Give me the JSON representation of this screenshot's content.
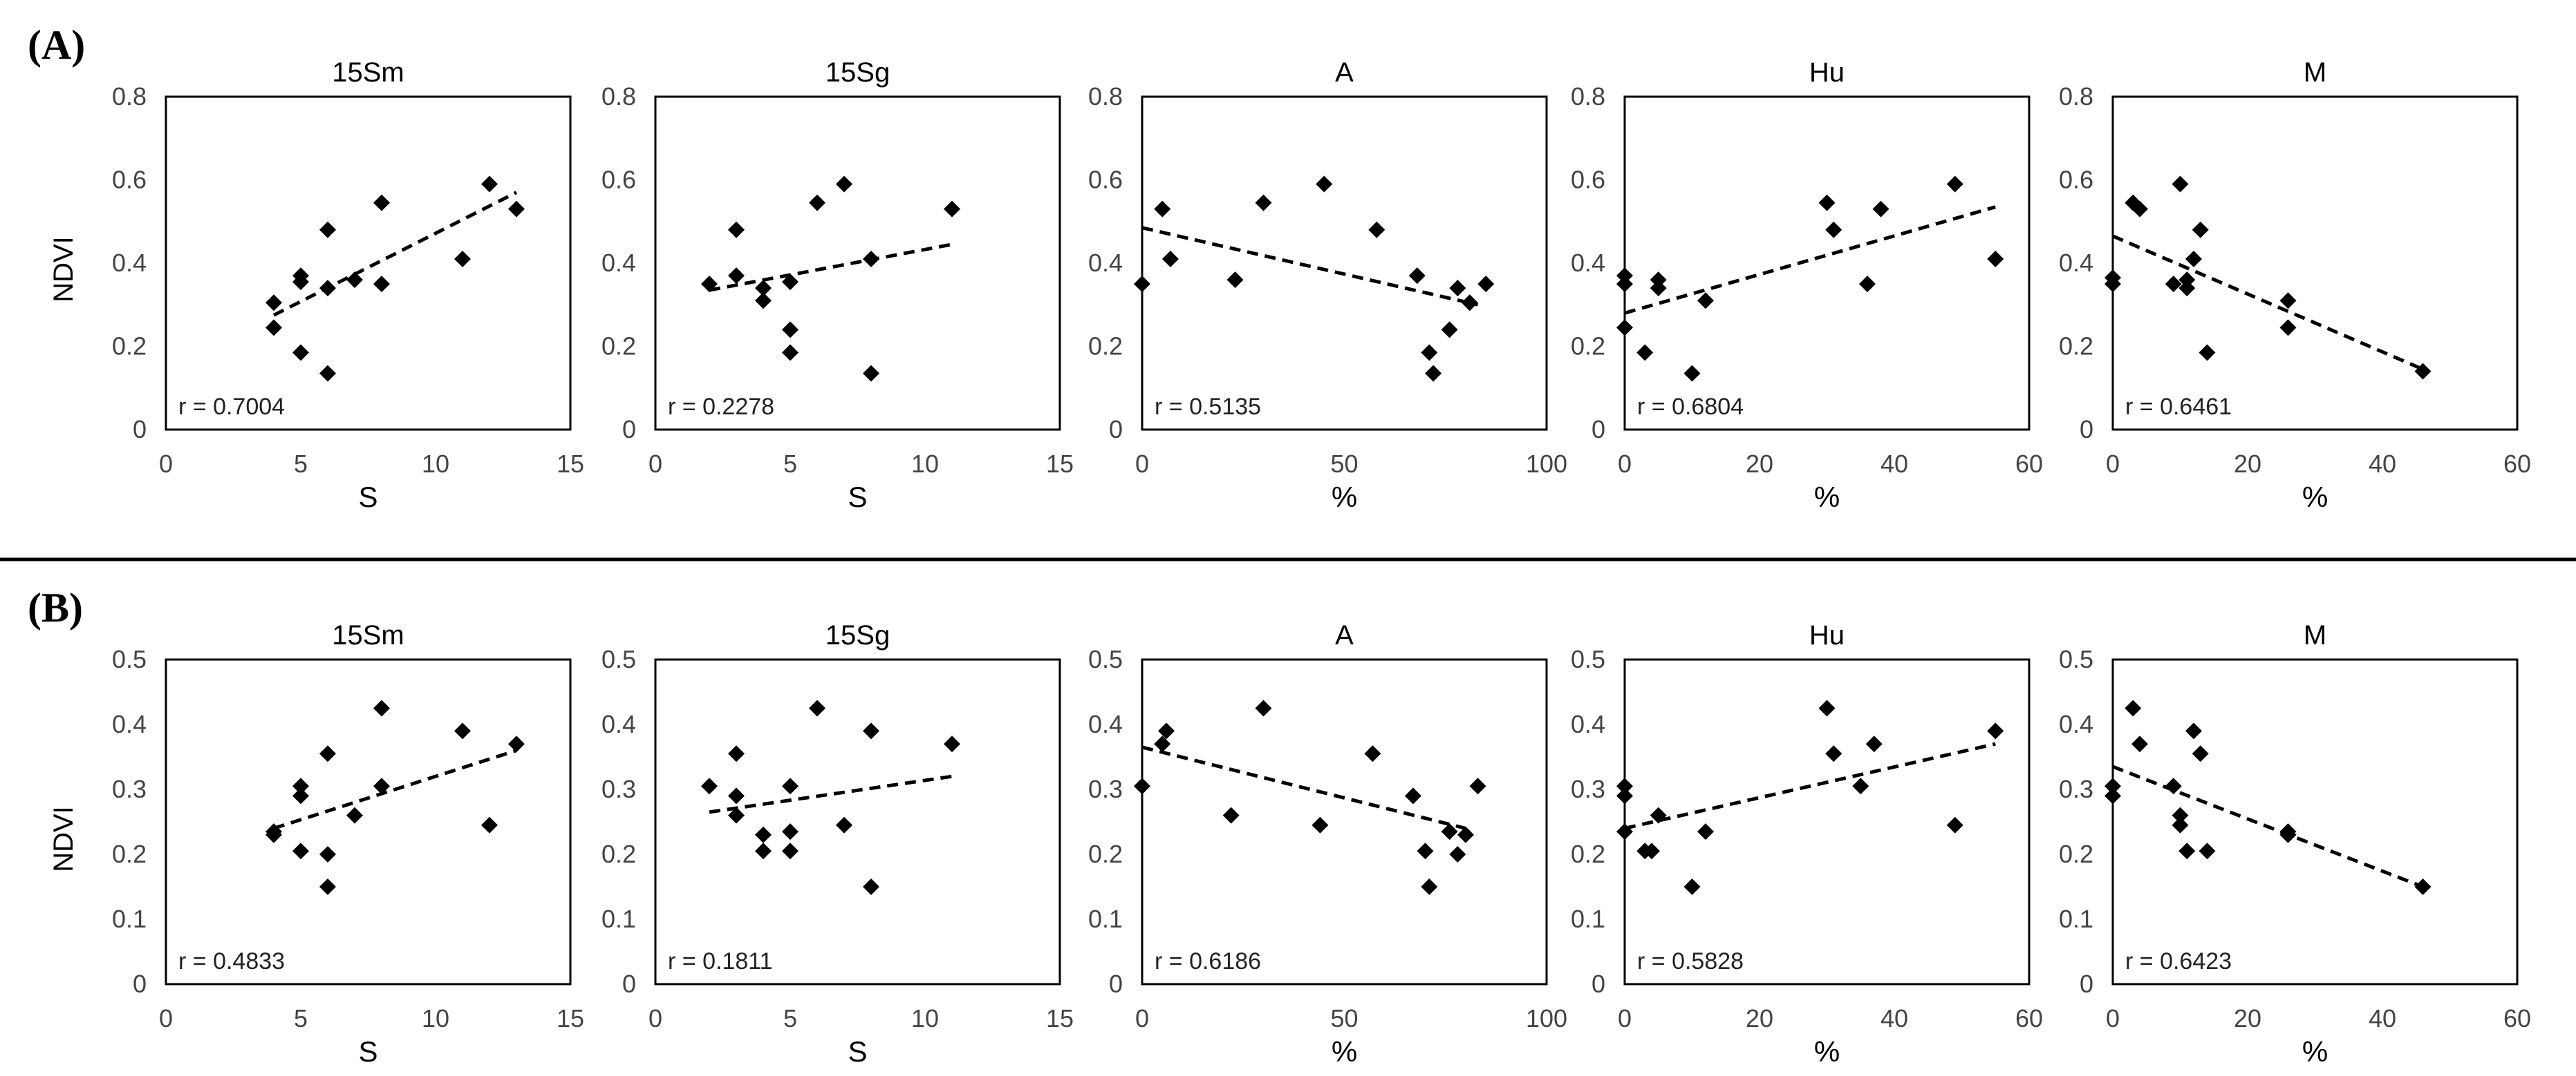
{
  "ylabel": "NDVI",
  "chart_data": [
    {
      "panel": "(A)",
      "title": "15Sm",
      "type": "scatter",
      "xlabel": "S",
      "ylabel": "NDVI",
      "xlim": [
        0,
        15
      ],
      "ylim": [
        0,
        0.8
      ],
      "xticks": [
        0,
        5,
        10,
        15
      ],
      "yticks": [
        0,
        0.2,
        0.4,
        0.6,
        0.8
      ],
      "ytick_labels": [
        "0",
        "0.2",
        "0.4",
        "0.6",
        "0.8"
      ],
      "r_label": "r = 0.7004",
      "trendline": [
        [
          4,
          0.275
        ],
        [
          13,
          0.57
        ]
      ],
      "points": [
        [
          4,
          0.305
        ],
        [
          4,
          0.245
        ],
        [
          5,
          0.37
        ],
        [
          5,
          0.355
        ],
        [
          5,
          0.185
        ],
        [
          6,
          0.48
        ],
        [
          6,
          0.34
        ],
        [
          6,
          0.135
        ],
        [
          7,
          0.36
        ],
        [
          8,
          0.545
        ],
        [
          8,
          0.35
        ],
        [
          11,
          0.41
        ],
        [
          12,
          0.59
        ],
        [
          13,
          0.53
        ]
      ]
    },
    {
      "panel": "(A)",
      "title": "15Sg",
      "type": "scatter",
      "xlabel": "S",
      "ylabel": "",
      "xlim": [
        0,
        15
      ],
      "ylim": [
        0,
        0.8
      ],
      "xticks": [
        0,
        5,
        10,
        15
      ],
      "yticks": [
        0,
        0.2,
        0.4,
        0.6,
        0.8
      ],
      "ytick_labels": [
        "0",
        "0.2",
        "0.4",
        "0.6",
        "0.8"
      ],
      "r_label": "r = 0.2278",
      "trendline": [
        [
          2,
          0.335
        ],
        [
          11,
          0.445
        ]
      ],
      "points": [
        [
          2,
          0.35
        ],
        [
          3,
          0.48
        ],
        [
          3,
          0.37
        ],
        [
          4,
          0.34
        ],
        [
          4,
          0.31
        ],
        [
          5,
          0.355
        ],
        [
          5,
          0.24
        ],
        [
          5,
          0.185
        ],
        [
          6,
          0.545
        ],
        [
          7,
          0.59
        ],
        [
          8,
          0.41
        ],
        [
          8,
          0.135
        ],
        [
          11,
          0.53
        ]
      ]
    },
    {
      "panel": "(A)",
      "title": "A",
      "type": "scatter",
      "xlabel": "%",
      "ylabel": "",
      "xlim": [
        0,
        100
      ],
      "ylim": [
        0,
        0.8
      ],
      "xticks": [
        0,
        50,
        100
      ],
      "yticks": [
        0,
        0.2,
        0.4,
        0.6,
        0.8
      ],
      "ytick_labels": [
        "0",
        "0.2",
        "0.4",
        "0.6",
        "0.8"
      ],
      "r_label": "r = 0.5135",
      "trendline": [
        [
          0,
          0.485
        ],
        [
          83,
          0.3
        ]
      ],
      "points": [
        [
          0,
          0.35
        ],
        [
          5,
          0.53
        ],
        [
          7,
          0.41
        ],
        [
          23,
          0.36
        ],
        [
          30,
          0.545
        ],
        [
          45,
          0.59
        ],
        [
          58,
          0.48
        ],
        [
          68,
          0.37
        ],
        [
          71,
          0.185
        ],
        [
          72,
          0.135
        ],
        [
          76,
          0.24
        ],
        [
          78,
          0.34
        ],
        [
          81,
          0.305
        ],
        [
          85,
          0.35
        ]
      ]
    },
    {
      "panel": "(A)",
      "title": "Hu",
      "type": "scatter",
      "xlabel": "%",
      "ylabel": "",
      "xlim": [
        0,
        60
      ],
      "ylim": [
        0,
        0.8
      ],
      "xticks": [
        0,
        20,
        40,
        60
      ],
      "yticks": [
        0,
        0.2,
        0.4,
        0.6,
        0.8
      ],
      "ytick_labels": [
        "0",
        "0.2",
        "0.4",
        "0.6",
        "0.8"
      ],
      "r_label": "r = 0.6804",
      "trendline": [
        [
          0,
          0.28
        ],
        [
          55,
          0.535
        ]
      ],
      "points": [
        [
          0,
          0.37
        ],
        [
          0,
          0.35
        ],
        [
          0,
          0.245
        ],
        [
          3,
          0.185
        ],
        [
          5,
          0.36
        ],
        [
          5,
          0.34
        ],
        [
          10,
          0.135
        ],
        [
          12,
          0.31
        ],
        [
          30,
          0.545
        ],
        [
          31,
          0.48
        ],
        [
          36,
          0.35
        ],
        [
          38,
          0.53
        ],
        [
          49,
          0.59
        ],
        [
          55,
          0.41
        ]
      ]
    },
    {
      "panel": "(A)",
      "title": "M",
      "type": "scatter",
      "xlabel": "%",
      "ylabel": "",
      "xlim": [
        0,
        60
      ],
      "ylim": [
        0,
        0.8
      ],
      "xticks": [
        0,
        20,
        40,
        60
      ],
      "yticks": [
        0,
        0.2,
        0.4,
        0.6,
        0.8
      ],
      "ytick_labels": [
        "0",
        "0.2",
        "0.4",
        "0.6",
        "0.8"
      ],
      "r_label": "r = 0.6461",
      "trendline": [
        [
          0,
          0.465
        ],
        [
          46,
          0.145
        ]
      ],
      "points": [
        [
          0,
          0.365
        ],
        [
          0,
          0.35
        ],
        [
          3,
          0.545
        ],
        [
          4,
          0.53
        ],
        [
          9,
          0.35
        ],
        [
          10,
          0.59
        ],
        [
          11,
          0.36
        ],
        [
          11,
          0.34
        ],
        [
          12,
          0.41
        ],
        [
          13,
          0.48
        ],
        [
          14,
          0.185
        ],
        [
          26,
          0.31
        ],
        [
          26,
          0.245
        ],
        [
          46,
          0.14
        ]
      ]
    },
    {
      "panel": "(B)",
      "title": "15Sm",
      "type": "scatter",
      "xlabel": "S",
      "ylabel": "NDVI",
      "xlim": [
        0,
        15
      ],
      "ylim": [
        0,
        0.5
      ],
      "xticks": [
        0,
        5,
        10,
        15
      ],
      "yticks": [
        0,
        0.1,
        0.2,
        0.3,
        0.4,
        0.5
      ],
      "ytick_labels": [
        "0",
        "0.1",
        "0.2",
        "0.3",
        "0.4",
        "0.5"
      ],
      "r_label": "r = 0.4833",
      "trendline": [
        [
          4,
          0.24
        ],
        [
          13,
          0.36
        ]
      ],
      "points": [
        [
          4,
          0.235
        ],
        [
          4,
          0.23
        ],
        [
          5,
          0.305
        ],
        [
          5,
          0.29
        ],
        [
          5,
          0.205
        ],
        [
          6,
          0.355
        ],
        [
          6,
          0.2
        ],
        [
          6,
          0.15
        ],
        [
          7,
          0.26
        ],
        [
          8,
          0.425
        ],
        [
          8,
          0.305
        ],
        [
          11,
          0.39
        ],
        [
          12,
          0.245
        ],
        [
          13,
          0.37
        ]
      ]
    },
    {
      "panel": "(B)",
      "title": "15Sg",
      "type": "scatter",
      "xlabel": "S",
      "ylabel": "",
      "xlim": [
        0,
        15
      ],
      "ylim": [
        0,
        0.5
      ],
      "xticks": [
        0,
        5,
        10,
        15
      ],
      "yticks": [
        0,
        0.1,
        0.2,
        0.3,
        0.4,
        0.5
      ],
      "ytick_labels": [
        "0",
        "0.1",
        "0.2",
        "0.3",
        "0.4",
        "0.5"
      ],
      "r_label": "r = 0.1811",
      "trendline": [
        [
          2,
          0.265
        ],
        [
          11,
          0.32
        ]
      ],
      "points": [
        [
          2,
          0.305
        ],
        [
          3,
          0.355
        ],
        [
          3,
          0.29
        ],
        [
          3,
          0.26
        ],
        [
          4,
          0.23
        ],
        [
          4,
          0.205
        ],
        [
          5,
          0.305
        ],
        [
          5,
          0.235
        ],
        [
          5,
          0.205
        ],
        [
          6,
          0.425
        ],
        [
          7,
          0.245
        ],
        [
          8,
          0.39
        ],
        [
          8,
          0.15
        ],
        [
          11,
          0.37
        ]
      ]
    },
    {
      "panel": "(B)",
      "title": "A",
      "type": "scatter",
      "xlabel": "%",
      "ylabel": "",
      "xlim": [
        0,
        100
      ],
      "ylim": [
        0,
        0.5
      ],
      "xticks": [
        0,
        50,
        100
      ],
      "yticks": [
        0,
        0.1,
        0.2,
        0.3,
        0.4,
        0.5
      ],
      "ytick_labels": [
        "0",
        "0.1",
        "0.2",
        "0.3",
        "0.4",
        "0.5"
      ],
      "r_label": "r = 0.6186",
      "trendline": [
        [
          0,
          0.365
        ],
        [
          80,
          0.24
        ]
      ],
      "points": [
        [
          0,
          0.305
        ],
        [
          5,
          0.37
        ],
        [
          6,
          0.39
        ],
        [
          22,
          0.26
        ],
        [
          30,
          0.425
        ],
        [
          44,
          0.245
        ],
        [
          57,
          0.355
        ],
        [
          67,
          0.29
        ],
        [
          70,
          0.205
        ],
        [
          71,
          0.15
        ],
        [
          76,
          0.235
        ],
        [
          78,
          0.2
        ],
        [
          80,
          0.23
        ],
        [
          83,
          0.305
        ]
      ]
    },
    {
      "panel": "(B)",
      "title": "Hu",
      "type": "scatter",
      "xlabel": "%",
      "ylabel": "",
      "xlim": [
        0,
        60
      ],
      "ylim": [
        0,
        0.5
      ],
      "xticks": [
        0,
        20,
        40,
        60
      ],
      "yticks": [
        0,
        0.1,
        0.2,
        0.3,
        0.4,
        0.5
      ],
      "ytick_labels": [
        "0",
        "0.1",
        "0.2",
        "0.3",
        "0.4",
        "0.5"
      ],
      "r_label": "r = 0.5828",
      "trendline": [
        [
          0,
          0.24
        ],
        [
          55,
          0.37
        ]
      ],
      "points": [
        [
          0,
          0.305
        ],
        [
          0,
          0.29
        ],
        [
          0,
          0.235
        ],
        [
          3,
          0.205
        ],
        [
          4,
          0.205
        ],
        [
          5,
          0.26
        ],
        [
          10,
          0.15
        ],
        [
          12,
          0.235
        ],
        [
          30,
          0.425
        ],
        [
          31,
          0.355
        ],
        [
          35,
          0.305
        ],
        [
          37,
          0.37
        ],
        [
          49,
          0.245
        ],
        [
          55,
          0.39
        ]
      ]
    },
    {
      "panel": "(B)",
      "title": "M",
      "type": "scatter",
      "xlabel": "%",
      "ylabel": "",
      "xlim": [
        0,
        60
      ],
      "ylim": [
        0,
        0.5
      ],
      "xticks": [
        0,
        20,
        40,
        60
      ],
      "yticks": [
        0,
        0.1,
        0.2,
        0.3,
        0.4,
        0.5
      ],
      "ytick_labels": [
        "0",
        "0.1",
        "0.2",
        "0.3",
        "0.4",
        "0.5"
      ],
      "r_label": "r = 0.6423",
      "trendline": [
        [
          0,
          0.335
        ],
        [
          46,
          0.15
        ]
      ],
      "points": [
        [
          0,
          0.305
        ],
        [
          0,
          0.29
        ],
        [
          3,
          0.425
        ],
        [
          4,
          0.37
        ],
        [
          9,
          0.305
        ],
        [
          10,
          0.26
        ],
        [
          10,
          0.245
        ],
        [
          11,
          0.205
        ],
        [
          12,
          0.39
        ],
        [
          13,
          0.355
        ],
        [
          14,
          0.205
        ],
        [
          26,
          0.235
        ],
        [
          26,
          0.23
        ],
        [
          46,
          0.15
        ]
      ]
    }
  ]
}
